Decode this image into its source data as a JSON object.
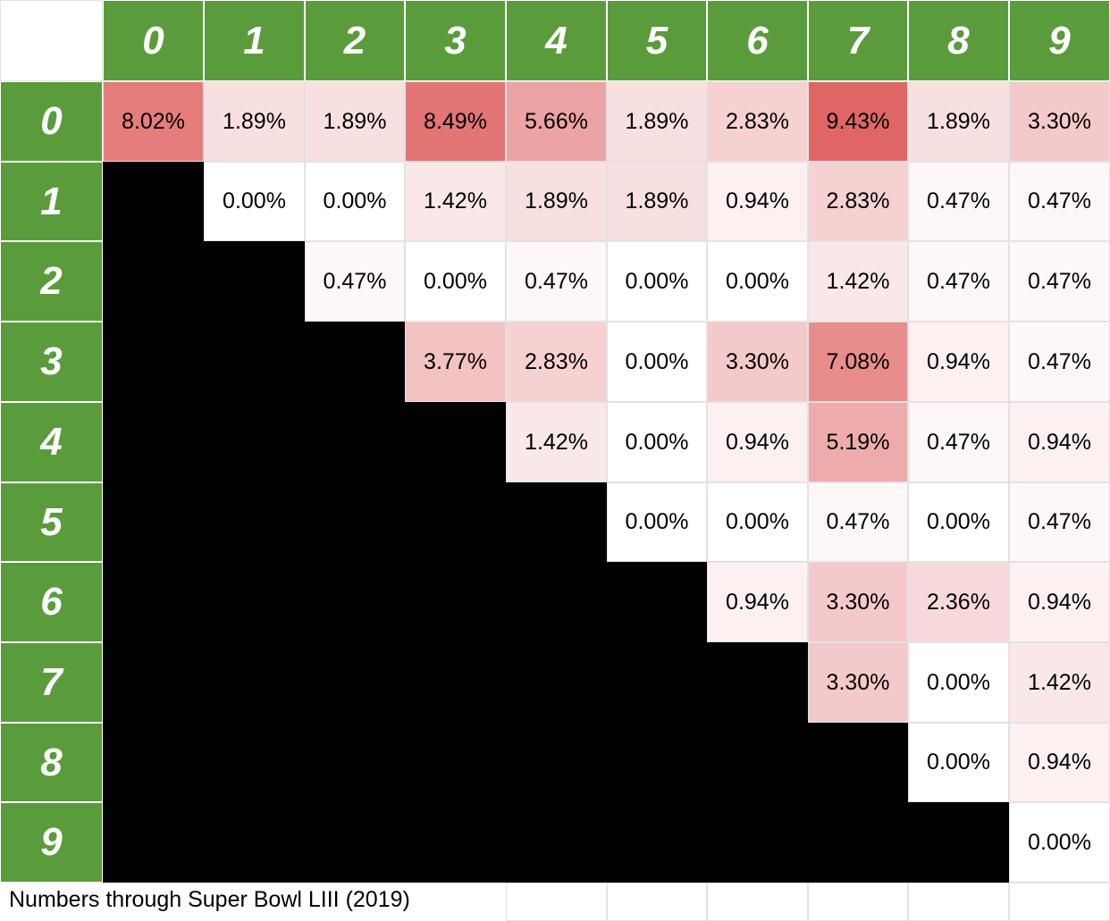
{
  "chart_data": {
    "type": "heatmap",
    "x_labels": [
      "0",
      "1",
      "2",
      "3",
      "4",
      "5",
      "6",
      "7",
      "8",
      "9"
    ],
    "y_labels": [
      "0",
      "1",
      "2",
      "3",
      "4",
      "5",
      "6",
      "7",
      "8",
      "9"
    ],
    "cells": [
      [
        "8.02%",
        "1.89%",
        "1.89%",
        "8.49%",
        "5.66%",
        "1.89%",
        "2.83%",
        "9.43%",
        "1.89%",
        "3.30%"
      ],
      [
        null,
        "0.00%",
        "0.00%",
        "1.42%",
        "1.89%",
        "1.89%",
        "0.94%",
        "2.83%",
        "0.47%",
        "0.47%"
      ],
      [
        null,
        null,
        "0.47%",
        "0.00%",
        "0.47%",
        "0.00%",
        "0.00%",
        "1.42%",
        "0.47%",
        "0.47%"
      ],
      [
        null,
        null,
        null,
        "3.77%",
        "2.83%",
        "0.00%",
        "3.30%",
        "7.08%",
        "0.94%",
        "0.47%"
      ],
      [
        null,
        null,
        null,
        null,
        "1.42%",
        "0.00%",
        "0.94%",
        "5.19%",
        "0.47%",
        "0.94%"
      ],
      [
        null,
        null,
        null,
        null,
        null,
        "0.00%",
        "0.00%",
        "0.47%",
        "0.00%",
        "0.47%"
      ],
      [
        null,
        null,
        null,
        null,
        null,
        null,
        "0.94%",
        "3.30%",
        "2.36%",
        "0.94%"
      ],
      [
        null,
        null,
        null,
        null,
        null,
        null,
        null,
        "3.30%",
        "0.00%",
        "1.42%"
      ],
      [
        null,
        null,
        null,
        null,
        null,
        null,
        null,
        null,
        "0.00%",
        "0.94%"
      ],
      [
        null,
        null,
        null,
        null,
        null,
        null,
        null,
        null,
        null,
        "0.00%"
      ]
    ],
    "color_scale": {
      "low": "#ffffff",
      "high": "#e06666"
    },
    "header_color": "#5a9c3c"
  },
  "footnote": "Numbers through Super Bowl LIII (2019)"
}
